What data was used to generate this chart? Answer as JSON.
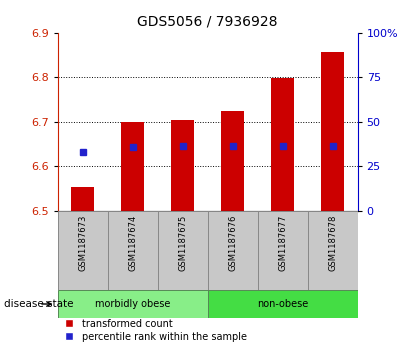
{
  "title": "GDS5056 / 7936928",
  "samples": [
    "GSM1187673",
    "GSM1187674",
    "GSM1187675",
    "GSM1187676",
    "GSM1187677",
    "GSM1187678"
  ],
  "bar_bottom": 6.5,
  "bar_tops": [
    6.554,
    6.7,
    6.703,
    6.724,
    6.798,
    6.856
  ],
  "blue_y": [
    6.632,
    6.643,
    6.645,
    6.645,
    6.645,
    6.645
  ],
  "ylim": [
    6.5,
    6.9
  ],
  "yticks": [
    6.5,
    6.6,
    6.7,
    6.8,
    6.9
  ],
  "right_yticks": [
    0,
    25,
    50,
    75,
    100
  ],
  "right_ylabels": [
    "0",
    "25",
    "50",
    "75",
    "100%"
  ],
  "bar_color": "#cc0000",
  "blue_color": "#2222cc",
  "groups": [
    {
      "label": "morbidly obese",
      "indices": [
        0,
        1,
        2
      ],
      "color": "#88ee88"
    },
    {
      "label": "non-obese",
      "indices": [
        3,
        4,
        5
      ],
      "color": "#44dd44"
    }
  ],
  "group_label": "disease state",
  "legend_items": [
    {
      "color": "#cc0000",
      "label": "transformed count"
    },
    {
      "color": "#2222cc",
      "label": "percentile rank within the sample"
    }
  ],
  "left_label_color": "#cc2200",
  "right_label_color": "#0000cc",
  "background_color": "#ffffff",
  "plot_bg": "#ffffff",
  "tick_label_area_color": "#c8c8c8",
  "grid_color": "#000000",
  "bar_width": 0.45
}
